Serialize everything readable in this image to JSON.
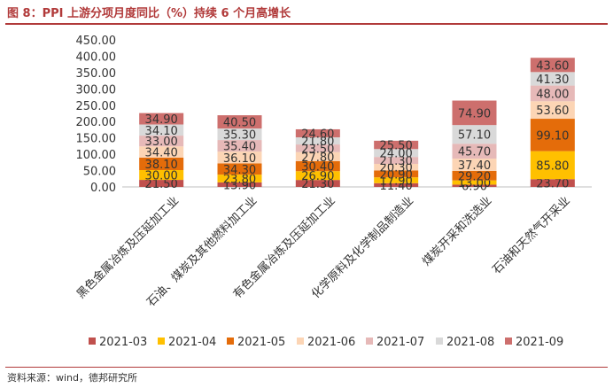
{
  "header": {
    "title": "图 8：PPI 上游分项月度同比（%）持续 6 个月高增长"
  },
  "footer": {
    "source": "资料来源：wind，德邦研究所"
  },
  "chart_data": {
    "type": "bar",
    "stacked": true,
    "title": "图 8：PPI 上游分项月度同比（%）持续 6 个月高增长",
    "categories": [
      "黑色金属冶炼及压延加工业",
      "石油、煤炭及其他燃料加工业",
      "有色金属冶炼及压延加工业",
      "化学原料及化学制品制造业",
      "煤炭开采和洗选业",
      "石油和天然气开采业"
    ],
    "ylim": [
      0,
      450
    ],
    "yticks": [
      "0.00",
      "50.00",
      "100.00",
      "150.00",
      "200.00",
      "250.00",
      "300.00",
      "350.00",
      "400.00",
      "450.00"
    ],
    "legend_position": "bottom",
    "series": [
      {
        "name": "2021-03",
        "color": "#c0504d",
        "values": [
          21.5,
          13.9,
          21.3,
          11.4,
          6.9,
          23.7
        ],
        "labels": [
          "21.50",
          "13.90",
          "21.30",
          "11.40",
          "6.90",
          "23.70"
        ]
      },
      {
        "name": "2021-04",
        "color": "#ffc000",
        "values": [
          30.0,
          23.8,
          26.9,
          17.9,
          13.0,
          85.8
        ],
        "labels": [
          "30.00",
          "23.80",
          "26.90",
          "17.90",
          "13.00",
          "85.80"
        ]
      },
      {
        "name": "2021-05",
        "color": "#e46c0a",
        "values": [
          38.1,
          34.3,
          30.4,
          20.9,
          29.2,
          99.1
        ],
        "labels": [
          "38.10",
          "34.30",
          "30.40",
          "20.90",
          "29.20",
          "99.10"
        ]
      },
      {
        "name": "2021-06",
        "color": "#fcd5b5",
        "values": [
          34.4,
          36.1,
          27.8,
          20.3,
          37.4,
          53.6
        ],
        "labels": [
          "34.40",
          "36.10",
          "27.80",
          "20.30",
          "37.40",
          "53.60"
        ]
      },
      {
        "name": "2021-07",
        "color": "#e6b9b8",
        "values": [
          33.0,
          35.4,
          23.5,
          21.3,
          45.7,
          48.0
        ],
        "labels": [
          "33.00",
          "35.40",
          "23.50",
          "21.30",
          "45.70",
          "48.00"
        ]
      },
      {
        "name": "2021-08",
        "color": "#d9d9d9",
        "values": [
          34.1,
          35.3,
          21.8,
          24.0,
          57.1,
          41.3
        ],
        "labels": [
          "34.10",
          "35.30",
          "21.80",
          "24.00",
          "57.10",
          "41.30"
        ]
      },
      {
        "name": "2021-09",
        "color": "#cd6f6d",
        "values": [
          34.9,
          40.5,
          24.6,
          25.5,
          74.9,
          43.6
        ],
        "labels": [
          "34.90",
          "40.50",
          "24.60",
          "25.50",
          "74.90",
          "43.60"
        ]
      }
    ]
  }
}
